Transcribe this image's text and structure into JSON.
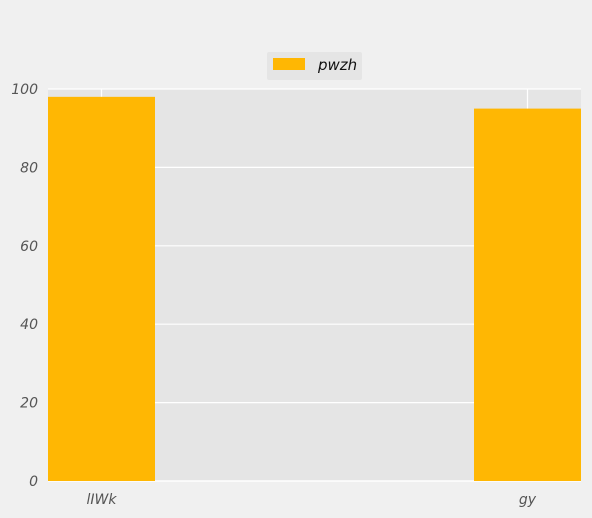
{
  "chart_data": {
    "type": "bar",
    "categories": [
      "lIWk",
      "gy"
    ],
    "series": [
      {
        "name": "pwzh",
        "values": [
          98,
          95
        ],
        "color": "#ffb703"
      }
    ],
    "ylim": [
      0,
      100
    ],
    "yticks": [
      0,
      20,
      40,
      60,
      80,
      100
    ],
    "grid": true,
    "legend_position": "top-center",
    "plot_background": "#e5e5e5",
    "figure_background": "#f0f0f0",
    "grid_color": "#ffffff"
  }
}
